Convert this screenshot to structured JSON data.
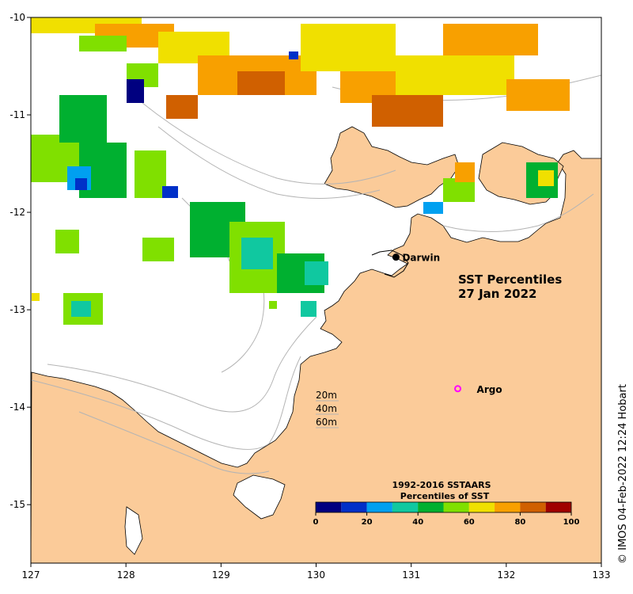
{
  "map": {
    "title_line1": "SST Percentiles",
    "title_line2": "27 Jan 2022",
    "x_ticks": [
      "127",
      "128",
      "129",
      "130",
      "131",
      "132",
      "133"
    ],
    "y_ticks": [
      "-10",
      "-11",
      "-12",
      "-13",
      "-14",
      "-15"
    ],
    "lon_range": [
      127,
      133
    ],
    "lat_range": [
      -15.6,
      -10
    ],
    "places": [
      {
        "name": "Darwin",
        "lon": 130.84,
        "lat": -12.46,
        "marker": "filled-circle"
      },
      {
        "name": "Argo",
        "lon": 131.49,
        "lat": -13.81,
        "marker": "magenta-open-circle"
      }
    ],
    "depth_labels": [
      "20m",
      "40m",
      "60m"
    ],
    "colors": {
      "land": "#fbcb99",
      "ocean": "#ffffff",
      "bathymetry": "#b4b4b4",
      "coast": "#000000",
      "argo": "#ff00ff"
    }
  },
  "legend": {
    "title_line1": "1992-2016 SSTAARS",
    "title_line2": "Percentiles of SST",
    "ticks": [
      "0",
      "20",
      "40",
      "60",
      "80",
      "100"
    ],
    "colors": [
      "#000080",
      "#0030c8",
      "#00a0f0",
      "#10c8a0",
      "#00b030",
      "#80e000",
      "#f0e000",
      "#f8a000",
      "#d06000",
      "#a00000"
    ]
  },
  "credit": "© IMOS 04-Feb-2022 12:24 Hobart"
}
